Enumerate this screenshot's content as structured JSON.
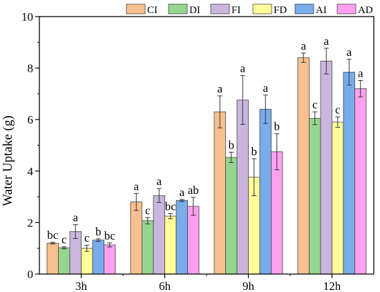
{
  "chart_data": {
    "type": "bar",
    "title": "",
    "xlabel": "",
    "ylabel": "Water Uptake (g)",
    "ylim": [
      0,
      10
    ],
    "yticks": [
      0,
      2,
      4,
      6,
      8,
      10
    ],
    "grid": false,
    "legend_position": "top",
    "categories": [
      "3h",
      "6h",
      "9h",
      "12h"
    ],
    "series": [
      {
        "name": "CI",
        "color": "#F8C08E",
        "values": [
          1.2,
          2.8,
          6.3,
          8.4
        ],
        "errors": [
          0.03,
          0.33,
          0.62,
          0.18
        ],
        "labels": [
          "bc",
          "a",
          "a",
          "a"
        ]
      },
      {
        "name": "DI",
        "color": "#96D58E",
        "values": [
          1.02,
          2.07,
          4.53,
          6.05
        ],
        "errors": [
          0.04,
          0.12,
          0.2,
          0.25
        ],
        "labels": [
          "c",
          "c",
          "b",
          "c"
        ]
      },
      {
        "name": "FI",
        "color": "#C9B5DD",
        "values": [
          1.65,
          3.05,
          6.76,
          8.27
        ],
        "errors": [
          0.27,
          0.27,
          0.95,
          0.5
        ],
        "labels": [
          "a",
          "a",
          "a",
          "a"
        ]
      },
      {
        "name": "FD",
        "color": "#FFFF99",
        "values": [
          1.0,
          2.25,
          3.76,
          5.9
        ],
        "errors": [
          0.12,
          0.1,
          0.72,
          0.2
        ],
        "labels": [
          "c",
          "bc",
          "b",
          "c"
        ]
      },
      {
        "name": "AI",
        "color": "#78ACEB",
        "values": [
          1.32,
          2.86,
          6.4,
          7.84
        ],
        "errors": [
          0.05,
          0.04,
          0.55,
          0.5
        ],
        "labels": [
          "b",
          "a",
          "a",
          "a"
        ]
      },
      {
        "name": "AD",
        "color": "#FFA0F0",
        "values": [
          1.13,
          2.63,
          4.75,
          7.2
        ],
        "errors": [
          0.08,
          0.35,
          0.7,
          0.32
        ],
        "labels": [
          "bc",
          "ab",
          "b",
          "a"
        ]
      }
    ]
  }
}
